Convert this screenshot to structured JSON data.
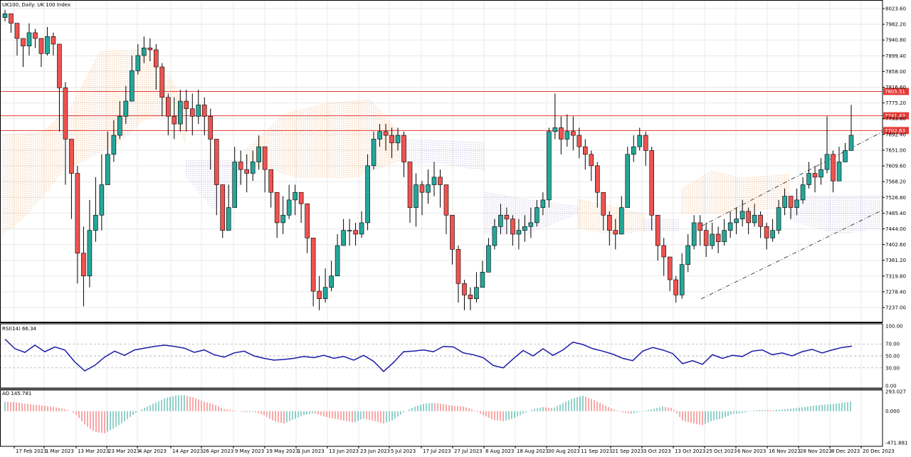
{
  "colors": {
    "bull": "#26a69a",
    "bear": "#ef5350",
    "hline": "#e53935",
    "rsi": "#1a1aa8",
    "ao_up": "#26a69a",
    "ao_down": "#ef5350",
    "kumo_bull": "#f4a460",
    "kumo_bear": "#b8a9d9",
    "grid": "#e8e8e8"
  },
  "chart_data": [
    {
      "type": "candlestick",
      "title": "UK100, Daily:  UK 100 Index",
      "ylim": [
        7215.0,
        8045.0
      ],
      "y_ticks": [
        "8023.60",
        "7982.20",
        "7940.80",
        "7899.40",
        "7858.00",
        "7816.60",
        "7775.20",
        "7733.80",
        "7692.40",
        "7651.00",
        "7609.60",
        "7568.20",
        "7526.80",
        "7485.40",
        "7444.00",
        "7402.60",
        "7361.20",
        "7319.80",
        "7278.40",
        "7237.00"
      ],
      "x_labels": [
        "17 Feb 2023",
        "1 Mar 2023",
        "13 Mar 2023",
        "23 Mar 2023",
        "4 Apr 2023",
        "14 Apr 2023",
        "26 Apr 2023",
        "9 May 2023",
        "19 May 2023",
        "1 Jun 2023",
        "13 Jun 2023",
        "23 Jun 2023",
        "5 Jul 2023",
        "17 Jul 2023",
        "27 Jul 2023",
        "8 Aug 2023",
        "18 Aug 2023",
        "30 Aug 2023",
        "11 Sep 2023",
        "21 Sep 2023",
        "3 Oct 2023",
        "13 Oct 2023",
        "25 Oct 2023",
        "6 Nov 2023",
        "16 Nov 2023",
        "28 Nov 2023",
        "8 Dec 2023",
        "20 Dec 2023"
      ],
      "horizontal_levels": [
        {
          "value": 7805.51,
          "label": "7805.51"
        },
        {
          "value": 7741.43,
          "label": "7741.43"
        },
        {
          "value": 7702.63,
          "label": "7702.63"
        }
      ],
      "anchors": [
        {
          "close": 8010,
          "high": 8020,
          "low": 7990
        },
        {
          "close": 7985,
          "high": 8000,
          "low": 7960
        },
        {
          "close": 7945,
          "high": 7980,
          "low": 7900
        },
        {
          "close": 7925,
          "high": 7940,
          "low": 7870
        },
        {
          "close": 7960,
          "high": 7985,
          "low": 7900
        },
        {
          "close": 7945,
          "high": 7970,
          "low": 7920
        },
        {
          "close": 7905,
          "high": 7945,
          "low": 7870
        },
        {
          "close": 7950,
          "high": 7975,
          "low": 7900
        },
        {
          "close": 7930,
          "high": 7960,
          "low": 7900
        },
        {
          "close": 7815,
          "high": 7915,
          "low": 7700
        },
        {
          "close": 7680,
          "high": 7830,
          "low": 7560
        },
        {
          "close": 7590,
          "high": 7680,
          "low": 7470
        },
        {
          "close": 7380,
          "high": 7610,
          "low": 7300
        },
        {
          "close": 7320,
          "high": 7450,
          "low": 7240
        },
        {
          "close": 7440,
          "high": 7520,
          "low": 7290
        },
        {
          "close": 7480,
          "high": 7580,
          "low": 7410
        },
        {
          "close": 7560,
          "high": 7640,
          "low": 7440
        },
        {
          "close": 7640,
          "high": 7700,
          "low": 7560
        },
        {
          "close": 7690,
          "high": 7730,
          "low": 7620
        },
        {
          "close": 7740,
          "high": 7780,
          "low": 7680
        },
        {
          "close": 7780,
          "high": 7820,
          "low": 7720
        },
        {
          "close": 7860,
          "high": 7900,
          "low": 7800
        },
        {
          "close": 7900,
          "high": 7930,
          "low": 7850
        },
        {
          "close": 7920,
          "high": 7950,
          "low": 7880
        },
        {
          "close": 7915,
          "high": 7945,
          "low": 7885
        },
        {
          "close": 7870,
          "high": 7930,
          "low": 7810
        },
        {
          "close": 7790,
          "high": 7880,
          "low": 7740
        },
        {
          "close": 7740,
          "high": 7800,
          "low": 7690
        },
        {
          "close": 7720,
          "high": 7790,
          "low": 7680
        },
        {
          "close": 7780,
          "high": 7810,
          "low": 7700
        },
        {
          "close": 7760,
          "high": 7810,
          "low": 7700
        },
        {
          "close": 7740,
          "high": 7800,
          "low": 7690
        },
        {
          "close": 7770,
          "high": 7810,
          "low": 7720
        },
        {
          "close": 7740,
          "high": 7790,
          "low": 7690
        },
        {
          "close": 7680,
          "high": 7760,
          "low": 7600
        },
        {
          "close": 7560,
          "high": 7680,
          "low": 7480
        },
        {
          "close": 7440,
          "high": 7540,
          "low": 7420
        },
        {
          "close": 7500,
          "high": 7560,
          "low": 7440
        },
        {
          "close": 7620,
          "high": 7660,
          "low": 7500
        },
        {
          "close": 7600,
          "high": 7650,
          "low": 7560
        },
        {
          "close": 7590,
          "high": 7640,
          "low": 7540
        },
        {
          "close": 7620,
          "high": 7650,
          "low": 7570
        },
        {
          "close": 7660,
          "high": 7690,
          "low": 7600
        },
        {
          "close": 7600,
          "high": 7660,
          "low": 7540
        },
        {
          "close": 7540,
          "high": 7600,
          "low": 7500
        },
        {
          "close": 7460,
          "high": 7540,
          "low": 7420
        },
        {
          "close": 7480,
          "high": 7530,
          "low": 7430
        },
        {
          "close": 7520,
          "high": 7560,
          "low": 7470
        },
        {
          "close": 7540,
          "high": 7560,
          "low": 7480
        },
        {
          "close": 7510,
          "high": 7540,
          "low": 7460
        },
        {
          "close": 7420,
          "high": 7500,
          "low": 7380
        },
        {
          "close": 7280,
          "high": 7420,
          "low": 7240
        },
        {
          "close": 7260,
          "high": 7320,
          "low": 7230
        },
        {
          "close": 7290,
          "high": 7340,
          "low": 7250
        },
        {
          "close": 7320,
          "high": 7360,
          "low": 7280
        },
        {
          "close": 7400,
          "high": 7430,
          "low": 7340
        },
        {
          "close": 7440,
          "high": 7470,
          "low": 7400
        },
        {
          "close": 7440,
          "high": 7470,
          "low": 7400
        },
        {
          "close": 7430,
          "high": 7460,
          "low": 7400
        },
        {
          "close": 7460,
          "high": 7490,
          "low": 7420
        },
        {
          "close": 7610,
          "high": 7640,
          "low": 7440
        },
        {
          "close": 7680,
          "high": 7700,
          "low": 7600
        },
        {
          "close": 7700,
          "high": 7720,
          "low": 7660
        },
        {
          "close": 7690,
          "high": 7720,
          "low": 7650
        },
        {
          "close": 7670,
          "high": 7710,
          "low": 7630
        },
        {
          "close": 7690,
          "high": 7710,
          "low": 7650
        },
        {
          "close": 7620,
          "high": 7700,
          "low": 7580
        },
        {
          "close": 7500,
          "high": 7620,
          "low": 7460
        },
        {
          "close": 7560,
          "high": 7590,
          "low": 7450
        },
        {
          "close": 7540,
          "high": 7570,
          "low": 7480
        },
        {
          "close": 7560,
          "high": 7600,
          "low": 7510
        },
        {
          "close": 7580,
          "high": 7620,
          "low": 7530
        },
        {
          "close": 7560,
          "high": 7600,
          "low": 7500
        },
        {
          "close": 7480,
          "high": 7560,
          "low": 7430
        },
        {
          "close": 7390,
          "high": 7480,
          "low": 7350
        },
        {
          "close": 7300,
          "high": 7400,
          "low": 7250
        },
        {
          "close": 7270,
          "high": 7310,
          "low": 7230
        },
        {
          "close": 7260,
          "high": 7290,
          "low": 7230
        },
        {
          "close": 7290,
          "high": 7330,
          "low": 7250
        },
        {
          "close": 7330,
          "high": 7360,
          "low": 7290
        },
        {
          "close": 7400,
          "high": 7420,
          "low": 7330
        },
        {
          "close": 7450,
          "high": 7470,
          "low": 7390
        },
        {
          "close": 7480,
          "high": 7510,
          "low": 7430
        },
        {
          "close": 7470,
          "high": 7500,
          "low": 7430
        },
        {
          "close": 7430,
          "high": 7480,
          "low": 7400
        },
        {
          "close": 7440,
          "high": 7470,
          "low": 7390
        },
        {
          "close": 7450,
          "high": 7480,
          "low": 7410
        },
        {
          "close": 7460,
          "high": 7500,
          "low": 7420
        },
        {
          "close": 7500,
          "high": 7520,
          "low": 7450
        },
        {
          "close": 7520,
          "high": 7540,
          "low": 7480
        },
        {
          "close": 7700,
          "high": 7710,
          "low": 7500
        },
        {
          "close": 7710,
          "high": 7800,
          "low": 7680
        },
        {
          "close": 7680,
          "high": 7740,
          "low": 7640
        },
        {
          "close": 7700,
          "high": 7745,
          "low": 7660
        },
        {
          "close": 7690,
          "high": 7740,
          "low": 7650
        },
        {
          "close": 7660,
          "high": 7710,
          "low": 7630
        },
        {
          "close": 7640,
          "high": 7680,
          "low": 7600
        },
        {
          "close": 7610,
          "high": 7650,
          "low": 7570
        },
        {
          "close": 7540,
          "high": 7620,
          "low": 7500
        },
        {
          "close": 7480,
          "high": 7540,
          "low": 7440
        },
        {
          "close": 7440,
          "high": 7490,
          "low": 7400
        },
        {
          "close": 7430,
          "high": 7470,
          "low": 7390
        },
        {
          "close": 7500,
          "high": 7530,
          "low": 7430
        },
        {
          "close": 7640,
          "high": 7660,
          "low": 7500
        },
        {
          "close": 7660,
          "high": 7690,
          "low": 7620
        },
        {
          "close": 7690,
          "high": 7710,
          "low": 7650
        },
        {
          "close": 7650,
          "high": 7700,
          "low": 7610
        },
        {
          "close": 7480,
          "high": 7660,
          "low": 7440
        },
        {
          "close": 7400,
          "high": 7480,
          "low": 7360
        },
        {
          "close": 7370,
          "high": 7420,
          "low": 7320
        },
        {
          "close": 7310,
          "high": 7370,
          "low": 7280
        },
        {
          "close": 7270,
          "high": 7320,
          "low": 7250
        },
        {
          "close": 7350,
          "high": 7380,
          "low": 7260
        },
        {
          "close": 7400,
          "high": 7430,
          "low": 7330
        },
        {
          "close": 7460,
          "high": 7480,
          "low": 7390
        },
        {
          "close": 7440,
          "high": 7480,
          "low": 7400
        },
        {
          "close": 7400,
          "high": 7460,
          "low": 7370
        },
        {
          "close": 7430,
          "high": 7460,
          "low": 7390
        },
        {
          "close": 7410,
          "high": 7450,
          "low": 7380
        },
        {
          "close": 7440,
          "high": 7470,
          "low": 7400
        },
        {
          "close": 7460,
          "high": 7490,
          "low": 7420
        },
        {
          "close": 7470,
          "high": 7500,
          "low": 7430
        },
        {
          "close": 7490,
          "high": 7520,
          "low": 7450
        },
        {
          "close": 7460,
          "high": 7500,
          "low": 7430
        },
        {
          "close": 7480,
          "high": 7510,
          "low": 7450
        },
        {
          "close": 7450,
          "high": 7490,
          "low": 7420
        },
        {
          "close": 7420,
          "high": 7460,
          "low": 7390
        },
        {
          "close": 7440,
          "high": 7470,
          "low": 7410
        },
        {
          "close": 7500,
          "high": 7520,
          "low": 7430
        },
        {
          "close": 7530,
          "high": 7550,
          "low": 7480
        },
        {
          "close": 7500,
          "high": 7530,
          "low": 7470
        },
        {
          "close": 7520,
          "high": 7550,
          "low": 7480
        },
        {
          "close": 7560,
          "high": 7580,
          "low": 7510
        },
        {
          "close": 7590,
          "high": 7620,
          "low": 7550
        },
        {
          "close": 7580,
          "high": 7610,
          "low": 7540
        },
        {
          "close": 7600,
          "high": 7630,
          "low": 7560
        },
        {
          "close": 7640,
          "high": 7740,
          "low": 7590
        },
        {
          "close": 7570,
          "high": 7650,
          "low": 7540
        },
        {
          "close": 7620,
          "high": 7660,
          "low": 7580
        },
        {
          "close": 7650,
          "high": 7670,
          "low": 7620
        },
        {
          "close": 7690,
          "high": 7770,
          "low": 7650
        }
      ]
    },
    {
      "type": "line",
      "title": "RSI(14) 66.34",
      "ylim": [
        0,
        100
      ],
      "y_ticks": [
        "100.00",
        "70.00",
        "50.00",
        "30.00",
        "0.00"
      ],
      "x": [
        0,
        14,
        28,
        42,
        56,
        70,
        84,
        98,
        112,
        126,
        140,
        154,
        168,
        182,
        196,
        210,
        224,
        238,
        252,
        266,
        280,
        294,
        308,
        322,
        336,
        350,
        364,
        378,
        392,
        406,
        420,
        434,
        448,
        462,
        476,
        490,
        504,
        518,
        532,
        546,
        560,
        574,
        588,
        602,
        616,
        630,
        644,
        658,
        672,
        686,
        700,
        714,
        728,
        742,
        756,
        770,
        784,
        798,
        812,
        826,
        840,
        854,
        868,
        882,
        896,
        910,
        924,
        938,
        952,
        966,
        980,
        994,
        1008,
        1022,
        1036,
        1050,
        1064,
        1078,
        1092,
        1106,
        1120,
        1134,
        1148,
        1162,
        1176,
        1190
      ],
      "y": [
        78,
        62,
        56,
        68,
        57,
        65,
        60,
        40,
        25,
        34,
        48,
        58,
        51,
        60,
        63,
        66,
        68,
        66,
        63,
        56,
        60,
        52,
        48,
        55,
        58,
        50,
        46,
        43,
        44,
        46,
        49,
        47,
        51,
        46,
        49,
        43,
        51,
        41,
        24,
        39,
        57,
        58,
        60,
        57,
        66,
        65,
        55,
        52,
        47,
        34,
        30,
        45,
        59,
        50,
        62,
        51,
        60,
        73,
        69,
        62,
        58,
        53,
        46,
        42,
        58,
        64,
        60,
        54,
        37,
        42,
        36,
        52,
        46,
        51,
        49,
        58,
        60,
        52,
        55,
        50,
        57,
        61,
        55,
        60,
        64,
        66.34
      ]
    },
    {
      "type": "bar",
      "title": "AO 145.781",
      "ylim": [
        -471.881,
        293.027
      ],
      "y_ticks": [
        "293.027",
        "0.000",
        "-471.881"
      ],
      "x": [
        0,
        14,
        28,
        42,
        56,
        70,
        84,
        98,
        112,
        126,
        140,
        154,
        168,
        182,
        196,
        210,
        224,
        238,
        252,
        266,
        280,
        294,
        308,
        322,
        336,
        350,
        364,
        378,
        392,
        406,
        420,
        434,
        448,
        462,
        476,
        490,
        504,
        518,
        532,
        546,
        560,
        574,
        588,
        602,
        616,
        630,
        644,
        658,
        672,
        686,
        700,
        714,
        728,
        742,
        756,
        770,
        784,
        798,
        812,
        826,
        840,
        854,
        868,
        882,
        896,
        910,
        924,
        938,
        952,
        966,
        980,
        994,
        1008,
        1022,
        1036,
        1050,
        1064,
        1078,
        1092,
        1106,
        1120,
        1134,
        1148,
        1162,
        1176,
        1190
      ],
      "values": [
        140,
        135,
        110,
        95,
        80,
        60,
        30,
        -30,
        -200,
        -310,
        -330,
        -250,
        -150,
        -40,
        50,
        120,
        190,
        230,
        240,
        200,
        140,
        100,
        30,
        10,
        -15,
        -10,
        -60,
        -150,
        -185,
        -120,
        -60,
        -30,
        -80,
        -110,
        -140,
        -170,
        -110,
        -145,
        -185,
        -130,
        -20,
        60,
        110,
        125,
        105,
        80,
        70,
        20,
        -60,
        -130,
        -150,
        -110,
        -40,
        30,
        60,
        45,
        120,
        190,
        230,
        175,
        100,
        30,
        -20,
        -40,
        5,
        30,
        70,
        45,
        -140,
        -180,
        -210,
        -140,
        -110,
        -40,
        -30,
        10,
        20,
        15,
        25,
        40,
        55,
        80,
        95,
        105,
        125,
        145.781
      ]
    }
  ]
}
